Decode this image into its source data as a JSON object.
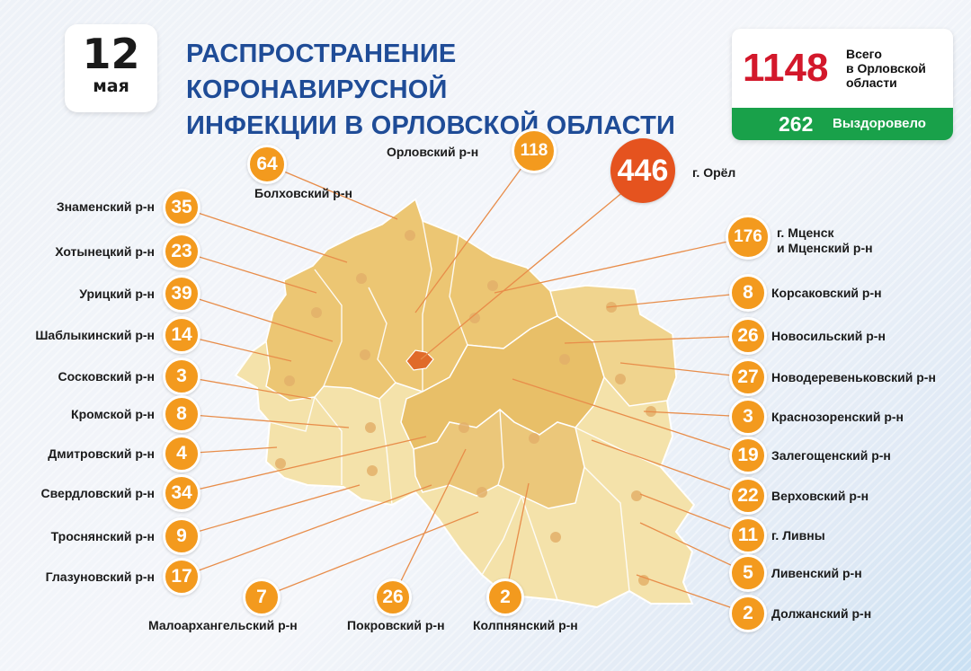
{
  "date": {
    "day": "12",
    "month": "мая"
  },
  "title_line1": "РАСПРОСТРАНЕНИЕ КОРОНАВИРУСНОЙ",
  "title_line2": "ИНФЕКЦИИ В ОРЛОВСКОЙ ОБЛАСТИ",
  "totals": {
    "total": "1148",
    "total_label_1": "Всего",
    "total_label_2": "в Орловской",
    "total_label_3": "области",
    "recovered": "262",
    "recovered_label": "Выздоровело"
  },
  "colors": {
    "badge": "#f39a1e",
    "city_badge": "#e5531f",
    "title": "#1f4c97",
    "total": "#d3182b",
    "recovered_bar": "#19a14a",
    "region_dark": "#e8bf68",
    "region_mid": "#efcf86",
    "region_light": "#f4e2aa"
  },
  "districts": [
    {
      "name": "Болховский р-н",
      "value": "64"
    },
    {
      "name": "Орловский р-н",
      "value": "118"
    },
    {
      "name": "г. Орёл",
      "value": "446"
    },
    {
      "name": "Знаменский р-н",
      "value": "35"
    },
    {
      "name": "Хотынецкий р-н",
      "value": "23"
    },
    {
      "name": "Урицкий р-н",
      "value": "39"
    },
    {
      "name": "Шаблыкинский р-н",
      "value": "14"
    },
    {
      "name": "Сосковский р-н",
      "value": "3"
    },
    {
      "name": "Кромской р-н",
      "value": "8"
    },
    {
      "name": "Дмитровский р-н",
      "value": "4"
    },
    {
      "name": "Свердловский р-н",
      "value": "34"
    },
    {
      "name": "Троснянский р-н",
      "value": "9"
    },
    {
      "name": "Глазуновский р-н",
      "value": "17"
    },
    {
      "name": "Малоархангельский р-н",
      "value": "7"
    },
    {
      "name": "Покровский р-н",
      "value": "26"
    },
    {
      "name": "Колпнянский р-н",
      "value": "2"
    },
    {
      "name": "г. Мценск\nи Мценский р-н",
      "value": "176"
    },
    {
      "name": "Корсаковский р-н",
      "value": "8"
    },
    {
      "name": "Новосильский р-н",
      "value": "26"
    },
    {
      "name": "Новодеревеньковский р-н",
      "value": "27"
    },
    {
      "name": "Краснозоренский р-н",
      "value": "3"
    },
    {
      "name": "Залегощенский р-н",
      "value": "19"
    },
    {
      "name": "Верховский р-н",
      "value": "22"
    },
    {
      "name": "г. Ливны",
      "value": "11"
    },
    {
      "name": "Ливенский р-н",
      "value": "5"
    },
    {
      "name": "Должанский р-н",
      "value": "2"
    }
  ]
}
